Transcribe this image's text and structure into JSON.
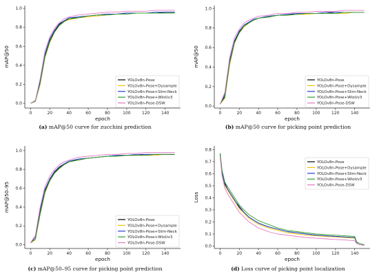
{
  "figure": {
    "captions": [
      {
        "tag": "(a)",
        "text": " mAP@50 curve for zucchini prediction"
      },
      {
        "tag": "(b)",
        "text": " mAP@50 curve for picking point prediction"
      },
      {
        "tag": "(c)",
        "text": " mAP@50–95 curve for picking point prediction"
      },
      {
        "tag": "(d)",
        "text": " Loss curve of picking point localization"
      }
    ]
  },
  "series_style": [
    {
      "name": "YOLOv8n-Pose",
      "color": "#000000"
    },
    {
      "name": "YOLOv8n-Pose+Dysample",
      "color": "#f2c200"
    },
    {
      "name": "YOLOv8n-Pose+Slim-Neck",
      "color": "#1f3fd6"
    },
    {
      "name": "YOLOv8n-Pose+WIoUv3",
      "color": "#2ca02c"
    },
    {
      "name": "YOLOv8n-Pose-DSW",
      "color": "#e377c2"
    }
  ],
  "chart_data": [
    {
      "type": "line",
      "title": "",
      "xlabel": "epoch",
      "ylabel": "mAP@50",
      "xlim": [
        -6,
        156
      ],
      "ylim": [
        -0.05,
        1.03
      ],
      "xticks": [
        0,
        20,
        40,
        60,
        80,
        100,
        120,
        140
      ],
      "yticks": [
        0.0,
        0.2,
        0.4,
        0.6,
        0.8,
        1.0
      ],
      "legend_position": "bottom-right",
      "x": [
        0,
        5,
        10,
        15,
        20,
        25,
        30,
        35,
        40,
        50,
        60,
        70,
        80,
        90,
        100,
        110,
        120,
        130,
        140,
        150
      ],
      "series": [
        {
          "name": "YOLOv8n-Pose",
          "values": [
            0.0,
            0.02,
            0.22,
            0.5,
            0.66,
            0.76,
            0.83,
            0.87,
            0.89,
            0.91,
            0.92,
            0.93,
            0.94,
            0.94,
            0.95,
            0.95,
            0.95,
            0.95,
            0.96,
            0.96
          ]
        },
        {
          "name": "YOLOv8n-Pose+Dysample",
          "values": [
            0.0,
            0.02,
            0.2,
            0.48,
            0.64,
            0.75,
            0.82,
            0.86,
            0.88,
            0.9,
            0.91,
            0.92,
            0.93,
            0.94,
            0.94,
            0.95,
            0.95,
            0.95,
            0.95,
            0.95
          ]
        },
        {
          "name": "YOLOv8n-Pose+Slim-Neck",
          "values": [
            0.0,
            0.03,
            0.24,
            0.52,
            0.68,
            0.77,
            0.84,
            0.87,
            0.9,
            0.91,
            0.92,
            0.93,
            0.94,
            0.94,
            0.95,
            0.95,
            0.95,
            0.96,
            0.96,
            0.96
          ]
        },
        {
          "name": "YOLOv8n-Pose+WIoUv3",
          "values": [
            0.0,
            0.02,
            0.21,
            0.49,
            0.65,
            0.75,
            0.82,
            0.86,
            0.89,
            0.9,
            0.92,
            0.93,
            0.93,
            0.94,
            0.94,
            0.95,
            0.95,
            0.95,
            0.95,
            0.95
          ]
        },
        {
          "name": "YOLOv8n-Pose-DSW",
          "values": [
            0.0,
            0.03,
            0.26,
            0.55,
            0.7,
            0.79,
            0.85,
            0.89,
            0.91,
            0.93,
            0.94,
            0.95,
            0.96,
            0.96,
            0.97,
            0.97,
            0.97,
            0.98,
            0.98,
            0.98
          ]
        }
      ]
    },
    {
      "type": "line",
      "title": "",
      "xlabel": "epoch",
      "ylabel": "mAP@50",
      "xlim": [
        -6,
        156
      ],
      "ylim": [
        -0.02,
        1.03
      ],
      "xticks": [
        0,
        20,
        40,
        60,
        80,
        100,
        120,
        140
      ],
      "yticks": [
        0.0,
        0.2,
        0.4,
        0.6,
        0.8,
        1.0
      ],
      "legend_position": "bottom-right",
      "x": [
        0,
        5,
        10,
        15,
        20,
        25,
        30,
        35,
        40,
        50,
        60,
        70,
        80,
        90,
        100,
        110,
        120,
        130,
        140,
        150
      ],
      "series": [
        {
          "name": "YOLOv8n-Pose",
          "values": [
            0.02,
            0.1,
            0.45,
            0.66,
            0.76,
            0.82,
            0.86,
            0.88,
            0.9,
            0.92,
            0.93,
            0.94,
            0.94,
            0.95,
            0.95,
            0.95,
            0.96,
            0.96,
            0.96,
            0.96
          ]
        },
        {
          "name": "YOLOv8n-Pose+Dysample",
          "values": [
            0.02,
            0.08,
            0.42,
            0.64,
            0.75,
            0.81,
            0.85,
            0.88,
            0.9,
            0.91,
            0.93,
            0.93,
            0.94,
            0.94,
            0.95,
            0.95,
            0.95,
            0.95,
            0.96,
            0.96
          ]
        },
        {
          "name": "YOLOv8n-Pose+Slim-Neck",
          "values": [
            0.02,
            0.12,
            0.47,
            0.67,
            0.77,
            0.83,
            0.86,
            0.89,
            0.9,
            0.92,
            0.93,
            0.94,
            0.95,
            0.95,
            0.95,
            0.96,
            0.96,
            0.96,
            0.96,
            0.96
          ]
        },
        {
          "name": "YOLOv8n-Pose+WIoUv3",
          "values": [
            0.02,
            0.09,
            0.44,
            0.65,
            0.75,
            0.82,
            0.85,
            0.88,
            0.9,
            0.91,
            0.93,
            0.93,
            0.94,
            0.95,
            0.95,
            0.95,
            0.95,
            0.96,
            0.96,
            0.96
          ]
        },
        {
          "name": "YOLOv8n-Pose-DSW",
          "values": [
            0.02,
            0.14,
            0.5,
            0.7,
            0.79,
            0.85,
            0.88,
            0.9,
            0.92,
            0.93,
            0.95,
            0.95,
            0.96,
            0.96,
            0.97,
            0.97,
            0.97,
            0.98,
            0.98,
            0.98
          ]
        }
      ]
    },
    {
      "type": "line",
      "title": "",
      "xlabel": "epoch",
      "ylabel": "mAP@50–95",
      "xlim": [
        -6,
        156
      ],
      "ylim": [
        -0.04,
        1.05
      ],
      "xticks": [
        0,
        20,
        40,
        60,
        80,
        100,
        120,
        140
      ],
      "yticks": [
        0.0,
        0.2,
        0.4,
        0.6,
        0.8,
        1.0
      ],
      "legend_position": "bottom-right",
      "x": [
        0,
        5,
        10,
        15,
        20,
        25,
        30,
        35,
        40,
        50,
        60,
        70,
        80,
        90,
        100,
        110,
        120,
        130,
        140,
        150
      ],
      "series": [
        {
          "name": "YOLOv8n-Pose",
          "values": [
            0.02,
            0.06,
            0.35,
            0.57,
            0.69,
            0.77,
            0.82,
            0.86,
            0.88,
            0.91,
            0.92,
            0.93,
            0.94,
            0.95,
            0.95,
            0.95,
            0.96,
            0.96,
            0.96,
            0.96
          ]
        },
        {
          "name": "YOLOv8n-Pose+Dysample",
          "values": [
            0.02,
            0.05,
            0.32,
            0.55,
            0.68,
            0.76,
            0.81,
            0.85,
            0.88,
            0.9,
            0.92,
            0.93,
            0.94,
            0.94,
            0.95,
            0.95,
            0.95,
            0.95,
            0.96,
            0.96
          ]
        },
        {
          "name": "YOLOv8n-Pose+Slim-Neck",
          "values": [
            0.02,
            0.08,
            0.37,
            0.59,
            0.7,
            0.78,
            0.83,
            0.86,
            0.89,
            0.91,
            0.92,
            0.93,
            0.94,
            0.95,
            0.95,
            0.96,
            0.96,
            0.96,
            0.96,
            0.96
          ]
        },
        {
          "name": "YOLOv8n-Pose+WIoUv3",
          "values": [
            0.02,
            0.06,
            0.33,
            0.56,
            0.68,
            0.76,
            0.81,
            0.85,
            0.88,
            0.9,
            0.92,
            0.93,
            0.94,
            0.94,
            0.95,
            0.95,
            0.95,
            0.96,
            0.96,
            0.96
          ]
        },
        {
          "name": "YOLOv8n-Pose-DSW",
          "values": [
            0.02,
            0.1,
            0.4,
            0.62,
            0.73,
            0.8,
            0.85,
            0.88,
            0.9,
            0.93,
            0.94,
            0.95,
            0.96,
            0.96,
            0.97,
            0.97,
            0.98,
            0.98,
            0.98,
            0.98
          ]
        }
      ]
    },
    {
      "type": "line",
      "title": "",
      "xlabel": "epoch",
      "ylabel": "Loss",
      "xlim": [
        -6,
        156
      ],
      "ylim": [
        -0.02,
        0.83
      ],
      "xticks": [
        0,
        20,
        40,
        60,
        80,
        100,
        120,
        140
      ],
      "yticks": [
        0.0,
        0.1,
        0.2,
        0.3,
        0.4,
        0.5,
        0.6,
        0.7,
        0.8
      ],
      "legend_position": "top-right",
      "x": [
        0,
        2,
        5,
        8,
        12,
        16,
        20,
        25,
        30,
        40,
        50,
        60,
        70,
        80,
        90,
        100,
        110,
        120,
        130,
        140,
        142,
        145,
        150
      ],
      "series": [
        {
          "name": "YOLOv8n-Pose",
          "values": [
            0.77,
            0.62,
            0.52,
            0.47,
            0.42,
            0.37,
            0.32,
            0.28,
            0.24,
            0.19,
            0.16,
            0.14,
            0.12,
            0.11,
            0.1,
            0.09,
            0.085,
            0.08,
            0.075,
            0.07,
            0.03,
            0.02,
            0.01
          ]
        },
        {
          "name": "YOLOv8n-Pose+Dysample",
          "values": [
            0.75,
            0.6,
            0.5,
            0.46,
            0.41,
            0.36,
            0.31,
            0.27,
            0.23,
            0.18,
            0.15,
            0.13,
            0.11,
            0.1,
            0.09,
            0.085,
            0.08,
            0.075,
            0.07,
            0.065,
            0.03,
            0.02,
            0.01
          ]
        },
        {
          "name": "YOLOv8n-Pose+Slim-Neck",
          "values": [
            0.76,
            0.61,
            0.51,
            0.47,
            0.42,
            0.37,
            0.33,
            0.28,
            0.24,
            0.19,
            0.16,
            0.14,
            0.12,
            0.11,
            0.1,
            0.09,
            0.085,
            0.08,
            0.075,
            0.07,
            0.03,
            0.02,
            0.01
          ]
        },
        {
          "name": "YOLOv8n-Pose+WIoUv3",
          "values": [
            0.77,
            0.63,
            0.53,
            0.49,
            0.44,
            0.39,
            0.34,
            0.3,
            0.26,
            0.21,
            0.18,
            0.15,
            0.13,
            0.12,
            0.11,
            0.1,
            0.095,
            0.09,
            0.085,
            0.08,
            0.035,
            0.02,
            0.01
          ]
        },
        {
          "name": "YOLOv8n-Pose-DSW",
          "values": [
            0.74,
            0.58,
            0.48,
            0.43,
            0.38,
            0.33,
            0.28,
            0.24,
            0.2,
            0.15,
            0.12,
            0.1,
            0.09,
            0.08,
            0.07,
            0.065,
            0.06,
            0.055,
            0.05,
            0.045,
            0.02,
            0.01,
            0.005
          ]
        }
      ]
    }
  ]
}
